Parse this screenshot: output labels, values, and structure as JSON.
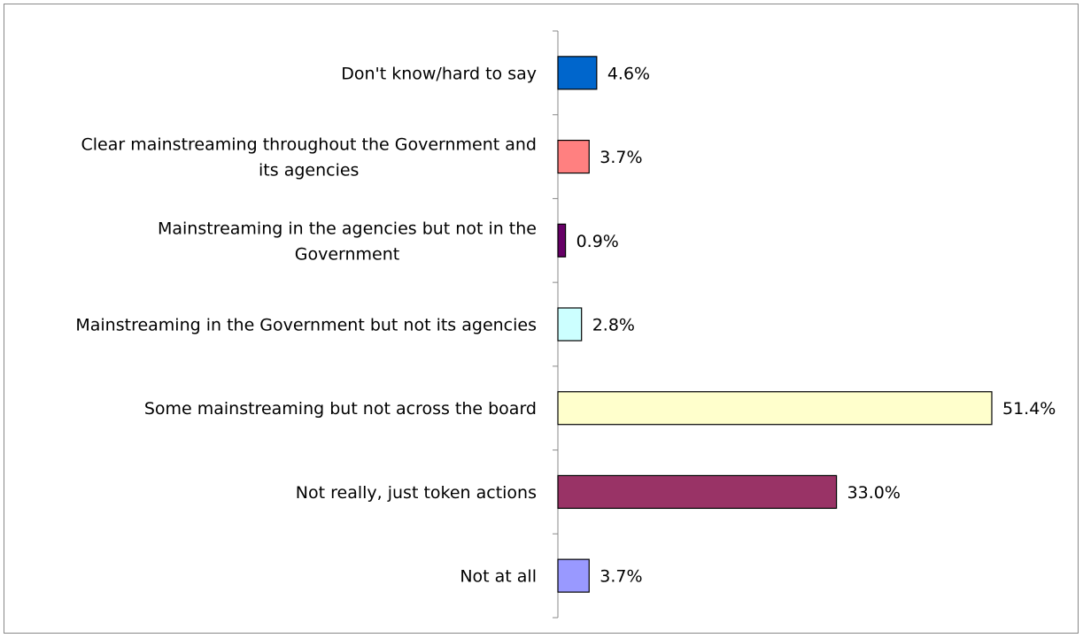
{
  "chart_data": {
    "type": "bar",
    "orientation": "horizontal",
    "title": "",
    "xlabel": "",
    "ylabel": "",
    "xlim": [
      0,
      55
    ],
    "grid": false,
    "legend": "none",
    "categories": [
      [
        "Don't know/hard to say"
      ],
      [
        "Clear mainstreaming throughout the Government and",
        "its agencies"
      ],
      [
        "Mainstreaming in the agencies but not in the",
        "Government"
      ],
      [
        "Mainstreaming in the Government but not its agencies"
      ],
      [
        "Some mainstreaming but not across the board"
      ],
      [
        "Not really, just token actions"
      ],
      [
        "Not at all"
      ]
    ],
    "values": [
      4.6,
      3.7,
      0.9,
      2.8,
      51.4,
      33.0,
      3.7
    ],
    "value_labels": [
      "4.6%",
      "3.7%",
      "0.9%",
      "2.8%",
      "51.4%",
      "33.0%",
      "3.7%"
    ],
    "colors": [
      "#0066CC",
      "#FF8080",
      "#660066",
      "#CCFFFF",
      "#FFFFCC",
      "#993366",
      "#9999FF"
    ]
  }
}
